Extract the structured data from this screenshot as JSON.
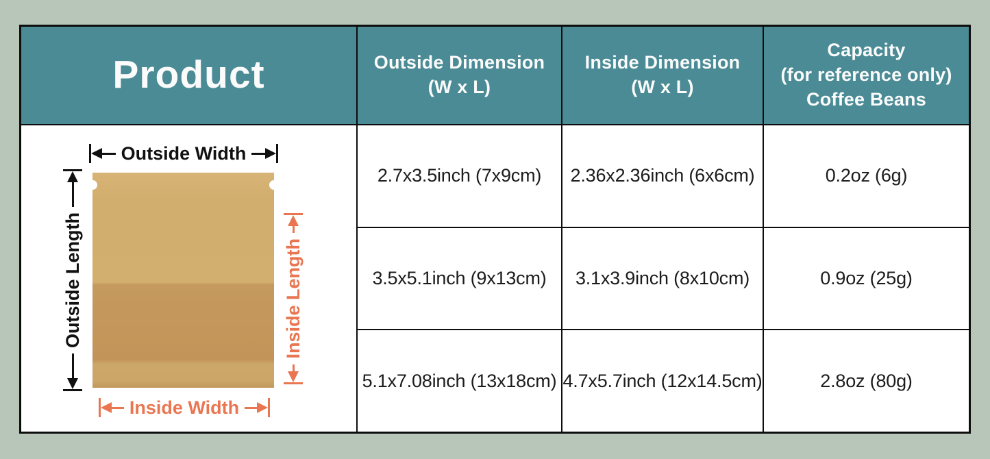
{
  "colors": {
    "page_background": "#B7C6B8",
    "header_teal": "#4A8B95",
    "annotation_orange": "#E97651",
    "kraft_light": "#D3AF6F",
    "kraft_dark": "#C59A5E",
    "border_black": "#0d0d0d"
  },
  "table": {
    "col_product": {
      "title": "Product"
    },
    "col_outside": {
      "line1": "Outside Dimension",
      "line2": "(W x L)"
    },
    "col_inside": {
      "line1": "Inside Dimension",
      "line2": "(W x L)"
    },
    "col_capacity": {
      "line1": "Capacity",
      "line2": "(for reference only)",
      "line3": "Coffee Beans"
    },
    "rows": [
      {
        "outside": "2.7x3.5inch (7x9cm)",
        "inside": "2.36x2.36inch (6x6cm)",
        "capacity": "0.2oz (6g)"
      },
      {
        "outside": "3.5x5.1inch (9x13cm)",
        "inside": "3.1x3.9inch (8x10cm)",
        "capacity": "0.9oz (25g)"
      },
      {
        "outside": "5.1x7.08inch (13x18cm)",
        "inside": "4.7x5.7inch (12x14.5cm)",
        "capacity": "2.8oz (80g)"
      }
    ]
  },
  "diagram": {
    "outside_width": "Outside Width",
    "outside_length": "Outside Length",
    "inside_width": "Inside Width",
    "inside_length": "Inside Length"
  }
}
